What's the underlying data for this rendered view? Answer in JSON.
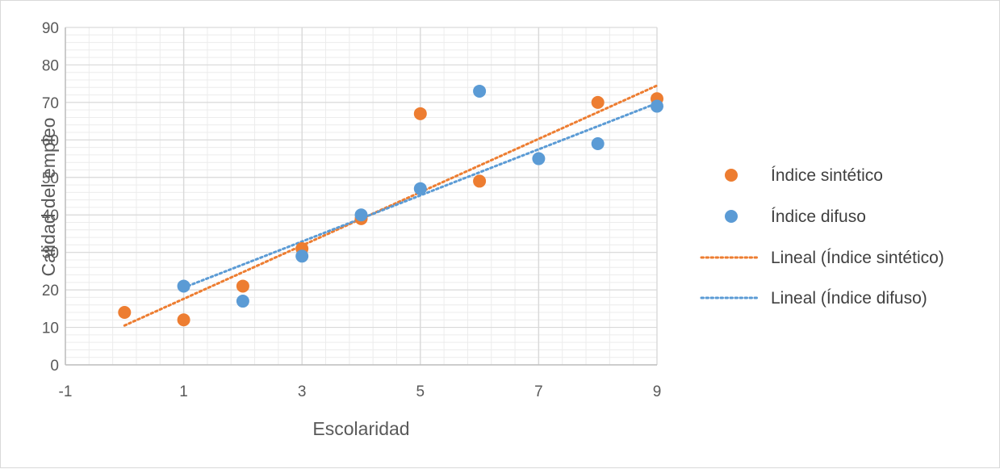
{
  "chart_data": {
    "type": "scatter",
    "title": "",
    "xlabel": "Escolaridad",
    "ylabel": "Calidad del empleo",
    "xlim": [
      -1,
      9
    ],
    "ylim": [
      0,
      90
    ],
    "x_ticks": [
      -1,
      1,
      3,
      5,
      7,
      9
    ],
    "y_ticks": [
      0,
      10,
      20,
      30,
      40,
      50,
      60,
      70,
      80,
      90
    ],
    "grid": true,
    "legend_position": "right",
    "series": [
      {
        "name": "Índice sintético",
        "color": "#ED7D31",
        "points": [
          [
            0,
            14
          ],
          [
            1,
            12
          ],
          [
            2,
            21
          ],
          [
            3,
            31
          ],
          [
            4,
            39
          ],
          [
            5,
            67
          ],
          [
            6,
            49
          ],
          [
            8,
            70
          ],
          [
            9,
            71
          ]
        ]
      },
      {
        "name": "Índice difuso",
        "color": "#5B9BD5",
        "points": [
          [
            1,
            21
          ],
          [
            2,
            17
          ],
          [
            3,
            29
          ],
          [
            4,
            40
          ],
          [
            5,
            47
          ],
          [
            6,
            73
          ],
          [
            7,
            55
          ],
          [
            8,
            59
          ],
          [
            9,
            69
          ]
        ]
      }
    ],
    "trendlines": [
      {
        "name": "Lineal (Índice sintético)",
        "color": "#ED7D31",
        "x_range": [
          0,
          9
        ],
        "y_range": [
          10.5,
          74.5
        ]
      },
      {
        "name": "Lineal (Índice difuso)",
        "color": "#5B9BD5",
        "x_range": [
          1,
          9
        ],
        "y_range": [
          20.6,
          69.8
        ]
      }
    ]
  }
}
